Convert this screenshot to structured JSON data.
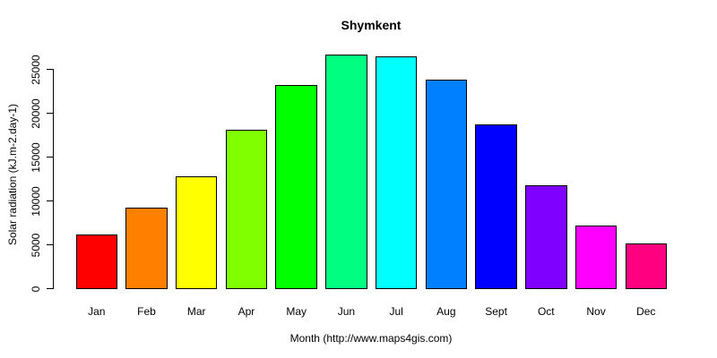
{
  "chart_data": {
    "type": "bar",
    "title": "Shymkent",
    "xlabel": "Month (http://www.maps4gis.com)",
    "ylabel": "Solar radiation (kJ.m-2.day-1)",
    "categories": [
      "Jan",
      "Feb",
      "Mar",
      "Apr",
      "May",
      "Jun",
      "Jul",
      "Aug",
      "Sept",
      "Oct",
      "Nov",
      "Dec"
    ],
    "values": [
      6300,
      9300,
      12900,
      18200,
      23300,
      26800,
      26600,
      23900,
      18800,
      11900,
      7300,
      5200
    ],
    "bar_colors": [
      "#FF0000",
      "#FF8000",
      "#FFFF00",
      "#80FF00",
      "#00FF00",
      "#00FF80",
      "#00FFFF",
      "#0080FF",
      "#0000FF",
      "#8000FF",
      "#FF00FF",
      "#FF0080"
    ],
    "yticks": [
      0,
      5000,
      10000,
      15000,
      20000,
      25000
    ],
    "ylim": [
      0,
      27000
    ],
    "grid": false,
    "legend": false,
    "background_color": "#FFFFFF",
    "axis_color": "#000000",
    "bar_border_color": "#000000"
  }
}
